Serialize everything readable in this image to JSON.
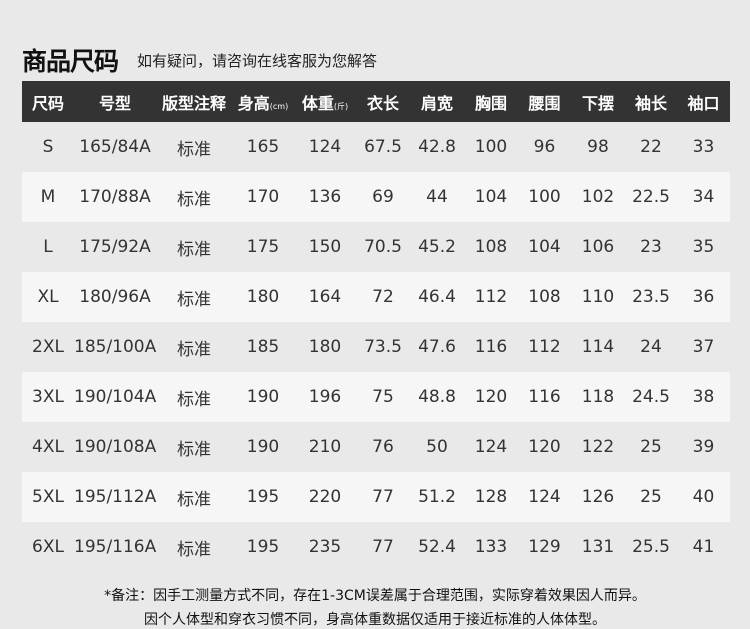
{
  "title": "商品尺码",
  "subtitle": "如有疑问，请咨询在线客服为您解答",
  "table": {
    "headers": [
      {
        "label": "尺码",
        "unit": ""
      },
      {
        "label": "号型",
        "unit": ""
      },
      {
        "label": "版型注释",
        "unit": ""
      },
      {
        "label": "身高",
        "unit": "(cm)"
      },
      {
        "label": "体重",
        "unit": "(斤)"
      },
      {
        "label": "衣长",
        "unit": ""
      },
      {
        "label": "肩宽",
        "unit": ""
      },
      {
        "label": "胸围",
        "unit": ""
      },
      {
        "label": "腰围",
        "unit": ""
      },
      {
        "label": "下摆",
        "unit": ""
      },
      {
        "label": "袖长",
        "unit": ""
      },
      {
        "label": "袖口",
        "unit": ""
      }
    ],
    "rows": [
      [
        "S",
        "165/84A",
        "标准",
        "165",
        "124",
        "67.5",
        "42.8",
        "100",
        "96",
        "98",
        "22",
        "33"
      ],
      [
        "M",
        "170/88A",
        "标准",
        "170",
        "136",
        "69",
        "44",
        "104",
        "100",
        "102",
        "22.5",
        "34"
      ],
      [
        "L",
        "175/92A",
        "标准",
        "175",
        "150",
        "70.5",
        "45.2",
        "108",
        "104",
        "106",
        "23",
        "35"
      ],
      [
        "XL",
        "180/96A",
        "标准",
        "180",
        "164",
        "72",
        "46.4",
        "112",
        "108",
        "110",
        "23.5",
        "36"
      ],
      [
        "2XL",
        "185/100A",
        "标准",
        "185",
        "180",
        "73.5",
        "47.6",
        "116",
        "112",
        "114",
        "24",
        "37"
      ],
      [
        "3XL",
        "190/104A",
        "标准",
        "190",
        "196",
        "75",
        "48.8",
        "120",
        "116",
        "118",
        "24.5",
        "38"
      ],
      [
        "4XL",
        "190/108A",
        "标准",
        "190",
        "210",
        "76",
        "50",
        "124",
        "120",
        "122",
        "25",
        "39"
      ],
      [
        "5XL",
        "195/112A",
        "标准",
        "195",
        "220",
        "77",
        "51.2",
        "128",
        "124",
        "126",
        "25",
        "40"
      ],
      [
        "6XL",
        "195/116A",
        "标准",
        "195",
        "235",
        "77",
        "52.4",
        "133",
        "129",
        "131",
        "25.5",
        "41"
      ]
    ]
  },
  "notes": [
    "*备注：因手工测量方式不同，存在1-3CM误差属于合理范围，实际穿着效果因人而异。",
    "因个人体型和穿衣习惯不同，身高体重数据仅适用于接近标准的人体体型。"
  ],
  "colors": {
    "header_bg": "#333333",
    "header_text": "#ffffff",
    "alt_row": "#f6f6f6"
  }
}
